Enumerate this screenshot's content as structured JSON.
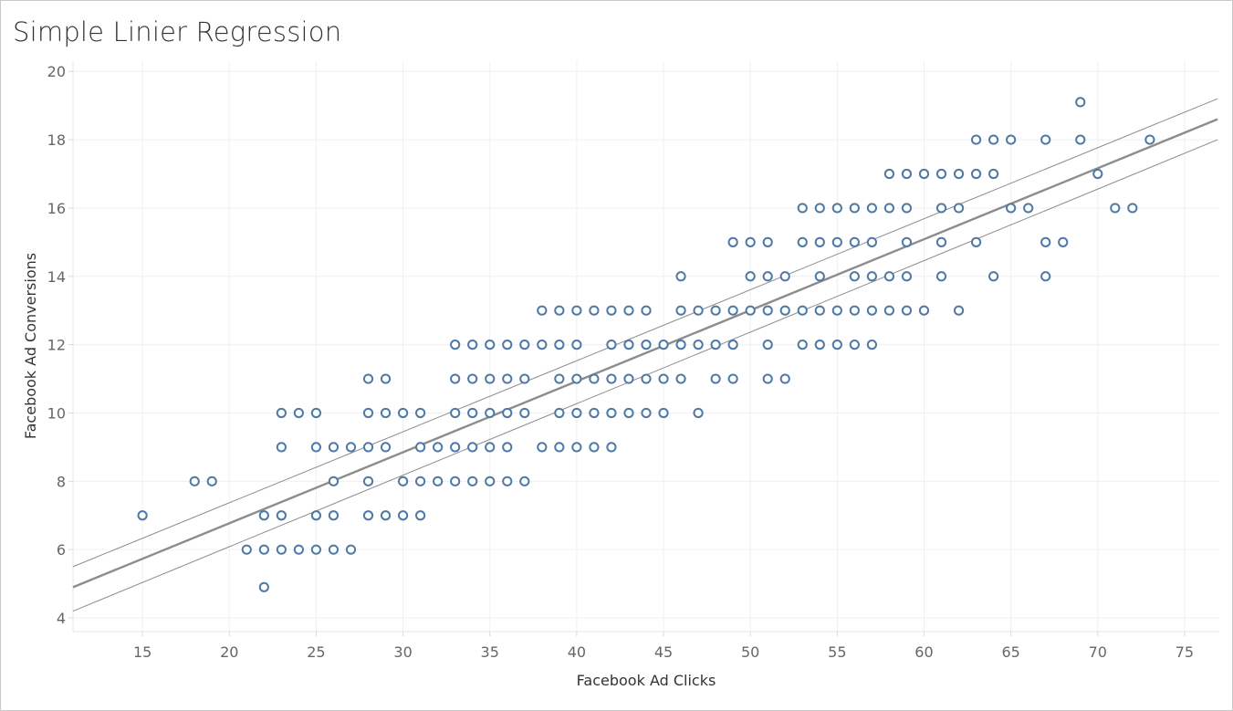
{
  "chart_data": {
    "type": "scatter",
    "title": "Simple Linier Regression",
    "xlabel": "Facebook Ad Clicks",
    "ylabel": "Facebook Ad Conversions",
    "xlim": [
      11,
      77
    ],
    "ylim": [
      3.6,
      20.3
    ],
    "x_ticks": [
      15,
      20,
      25,
      30,
      35,
      40,
      45,
      50,
      55,
      60,
      65,
      70,
      75
    ],
    "y_ticks": [
      4,
      6,
      8,
      10,
      12,
      14,
      16,
      18,
      20
    ],
    "grid": true,
    "point_color": "#4e79a7",
    "trend_color": "#8c8c8c",
    "trend_line": {
      "fit": [
        [
          11,
          4.9
        ],
        [
          76.9,
          18.6
        ]
      ],
      "upper": [
        [
          11,
          5.5
        ],
        [
          76.9,
          19.2
        ]
      ],
      "lower": [
        [
          11,
          4.2
        ],
        [
          76.9,
          18.0
        ]
      ]
    },
    "points": [
      [
        15,
        7
      ],
      [
        18,
        8
      ],
      [
        19,
        8
      ],
      [
        21,
        6
      ],
      [
        22,
        6
      ],
      [
        22,
        7
      ],
      [
        22,
        4.9
      ],
      [
        23,
        6
      ],
      [
        23,
        7
      ],
      [
        23,
        9
      ],
      [
        23,
        10
      ],
      [
        24,
        6
      ],
      [
        24,
        10
      ],
      [
        25,
        6
      ],
      [
        25,
        7
      ],
      [
        25,
        9
      ],
      [
        25,
        10
      ],
      [
        26,
        6
      ],
      [
        26,
        7
      ],
      [
        26,
        8
      ],
      [
        26,
        9
      ],
      [
        27,
        6
      ],
      [
        27,
        9
      ],
      [
        28,
        7
      ],
      [
        28,
        8
      ],
      [
        28,
        9
      ],
      [
        28,
        10
      ],
      [
        28,
        11
      ],
      [
        29,
        7
      ],
      [
        29,
        9
      ],
      [
        29,
        10
      ],
      [
        29,
        11
      ],
      [
        30,
        7
      ],
      [
        30,
        8
      ],
      [
        30,
        10
      ],
      [
        31,
        7
      ],
      [
        31,
        8
      ],
      [
        31,
        9
      ],
      [
        31,
        10
      ],
      [
        32,
        8
      ],
      [
        32,
        9
      ],
      [
        33,
        8
      ],
      [
        33,
        9
      ],
      [
        33,
        10
      ],
      [
        33,
        11
      ],
      [
        33,
        12
      ],
      [
        34,
        8
      ],
      [
        34,
        9
      ],
      [
        34,
        10
      ],
      [
        34,
        11
      ],
      [
        34,
        12
      ],
      [
        35,
        8
      ],
      [
        35,
        9
      ],
      [
        35,
        10
      ],
      [
        35,
        11
      ],
      [
        35,
        12
      ],
      [
        36,
        8
      ],
      [
        36,
        9
      ],
      [
        36,
        10
      ],
      [
        36,
        11
      ],
      [
        36,
        12
      ],
      [
        37,
        8
      ],
      [
        37,
        10
      ],
      [
        37,
        11
      ],
      [
        37,
        12
      ],
      [
        38,
        9
      ],
      [
        38,
        12
      ],
      [
        38,
        13
      ],
      [
        39,
        9
      ],
      [
        39,
        10
      ],
      [
        39,
        11
      ],
      [
        39,
        12
      ],
      [
        39,
        13
      ],
      [
        40,
        9
      ],
      [
        40,
        10
      ],
      [
        40,
        11
      ],
      [
        40,
        12
      ],
      [
        40,
        13
      ],
      [
        41,
        9
      ],
      [
        41,
        10
      ],
      [
        41,
        11
      ],
      [
        41,
        13
      ],
      [
        42,
        9
      ],
      [
        42,
        10
      ],
      [
        42,
        11
      ],
      [
        42,
        12
      ],
      [
        42,
        13
      ],
      [
        43,
        10
      ],
      [
        43,
        11
      ],
      [
        43,
        12
      ],
      [
        43,
        13
      ],
      [
        44,
        10
      ],
      [
        44,
        11
      ],
      [
        44,
        12
      ],
      [
        44,
        13
      ],
      [
        45,
        10
      ],
      [
        45,
        11
      ],
      [
        45,
        12
      ],
      [
        46,
        11
      ],
      [
        46,
        12
      ],
      [
        46,
        13
      ],
      [
        46,
        14
      ],
      [
        47,
        10
      ],
      [
        47,
        12
      ],
      [
        47,
        13
      ],
      [
        48,
        11
      ],
      [
        48,
        12
      ],
      [
        48,
        13
      ],
      [
        49,
        11
      ],
      [
        49,
        12
      ],
      [
        49,
        13
      ],
      [
        49,
        15
      ],
      [
        50,
        13
      ],
      [
        50,
        14
      ],
      [
        50,
        15
      ],
      [
        51,
        11
      ],
      [
        51,
        12
      ],
      [
        51,
        13
      ],
      [
        51,
        14
      ],
      [
        51,
        15
      ],
      [
        52,
        11
      ],
      [
        52,
        13
      ],
      [
        52,
        14
      ],
      [
        53,
        12
      ],
      [
        53,
        13
      ],
      [
        53,
        15
      ],
      [
        53,
        16
      ],
      [
        54,
        12
      ],
      [
        54,
        13
      ],
      [
        54,
        14
      ],
      [
        54,
        15
      ],
      [
        54,
        16
      ],
      [
        55,
        12
      ],
      [
        55,
        13
      ],
      [
        55,
        15
      ],
      [
        55,
        16
      ],
      [
        56,
        12
      ],
      [
        56,
        13
      ],
      [
        56,
        14
      ],
      [
        56,
        15
      ],
      [
        56,
        16
      ],
      [
        57,
        12
      ],
      [
        57,
        13
      ],
      [
        57,
        14
      ],
      [
        57,
        15
      ],
      [
        57,
        16
      ],
      [
        58,
        13
      ],
      [
        58,
        14
      ],
      [
        58,
        16
      ],
      [
        58,
        17
      ],
      [
        59,
        13
      ],
      [
        59,
        14
      ],
      [
        59,
        15
      ],
      [
        59,
        16
      ],
      [
        59,
        17
      ],
      [
        60,
        13
      ],
      [
        60,
        17
      ],
      [
        61,
        14
      ],
      [
        61,
        15
      ],
      [
        61,
        16
      ],
      [
        61,
        17
      ],
      [
        62,
        13
      ],
      [
        62,
        16
      ],
      [
        62,
        17
      ],
      [
        63,
        15
      ],
      [
        63,
        17
      ],
      [
        63,
        18
      ],
      [
        64,
        14
      ],
      [
        64,
        17
      ],
      [
        64,
        18
      ],
      [
        65,
        16
      ],
      [
        65,
        18
      ],
      [
        66,
        16
      ],
      [
        67,
        14
      ],
      [
        67,
        15
      ],
      [
        67,
        18
      ],
      [
        68,
        15
      ],
      [
        69,
        18
      ],
      [
        69,
        19.1
      ],
      [
        70,
        17
      ],
      [
        71,
        16
      ],
      [
        72,
        16
      ],
      [
        73,
        18
      ]
    ]
  }
}
